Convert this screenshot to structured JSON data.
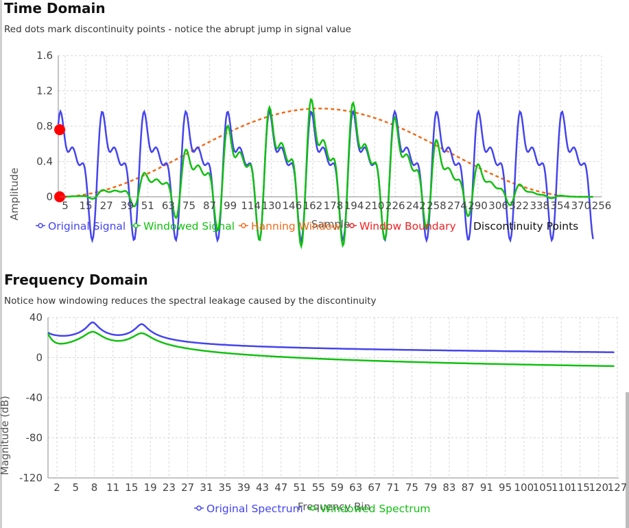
{
  "time": {
    "title": "Time Domain",
    "subtitle": "Red dots mark discontinuity points - notice the abrupt jump in signal value"
  },
  "freq": {
    "title": "Frequency Domain",
    "subtitle": "Notice how windowing reduces the spectral leakage caused by the discontinuity"
  },
  "chart_data": [
    {
      "type": "line",
      "xlabel": "Sample",
      "ylabel": "Amplitude",
      "xlim": [
        0,
        256
      ],
      "ylim": [
        0,
        1.6
      ],
      "yticks": [
        "0",
        "0.4",
        "0.8",
        "1.2",
        "1.6"
      ],
      "xticks": [
        "5",
        "15",
        "27",
        "39",
        "51",
        "63",
        "75",
        "87",
        "99",
        "114",
        "130",
        "146",
        "162",
        "178",
        "194",
        "210",
        "226",
        "242",
        "258",
        "274",
        "290",
        "306",
        "322",
        "338",
        "354",
        "370",
        "256"
      ],
      "legend": [
        "Original Signal",
        "Windowed Signal",
        "Hanning Window",
        "Window Boundary",
        "Discontinuity Points"
      ],
      "series": [
        {
          "name": "Original Signal",
          "color": "#4444ee"
        },
        {
          "name": "Windowed Signal",
          "color": "#11c011"
        },
        {
          "name": "Hanning Window",
          "color": "#f06a1a",
          "dash": true
        },
        {
          "name": "Window Boundary",
          "color": "#ee2222"
        },
        {
          "name": "Discontinuity Points",
          "color": "#ff0000",
          "points": [
            [
              0,
              0.76
            ],
            [
              0,
              0.0
            ]
          ]
        }
      ]
    },
    {
      "type": "line",
      "xlabel": "Frequency Bin",
      "ylabel": "Magnitude (dB)",
      "xlim": [
        0,
        128
      ],
      "ylim": [
        -120,
        40
      ],
      "yticks": [
        "40",
        "0",
        "-40",
        "-80",
        "-120"
      ],
      "xticks": [
        "2",
        "5",
        "8",
        "11",
        "15",
        "19",
        "23",
        "27",
        "31",
        "35",
        "39",
        "43",
        "47",
        "51",
        "55",
        "59",
        "63",
        "67",
        "71",
        "75",
        "79",
        "83",
        "87",
        "91",
        "95",
        "100",
        "105",
        "110",
        "115",
        "120",
        "127"
      ],
      "legend": [
        "Original Spectrum",
        "Windowed Spectrum"
      ],
      "series": [
        {
          "name": "Original Spectrum",
          "color": "#4444ee"
        },
        {
          "name": "Windowed Spectrum",
          "color": "#11c011"
        }
      ]
    }
  ]
}
